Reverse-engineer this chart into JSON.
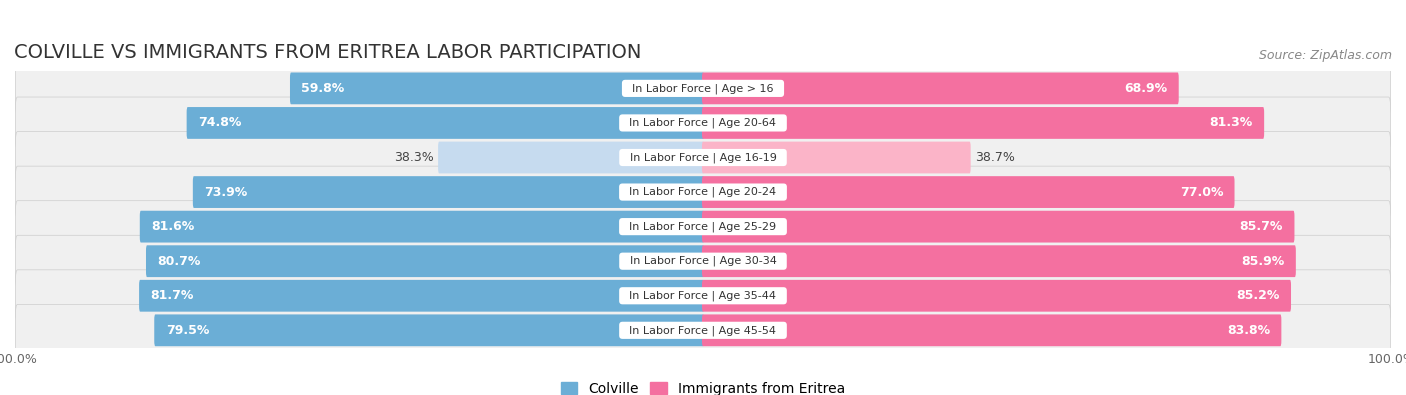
{
  "title": "COLVILLE VS IMMIGRANTS FROM ERITREA LABOR PARTICIPATION",
  "source": "Source: ZipAtlas.com",
  "categories": [
    "In Labor Force | Age > 16",
    "In Labor Force | Age 20-64",
    "In Labor Force | Age 16-19",
    "In Labor Force | Age 20-24",
    "In Labor Force | Age 25-29",
    "In Labor Force | Age 30-34",
    "In Labor Force | Age 35-44",
    "In Labor Force | Age 45-54"
  ],
  "colville_values": [
    59.8,
    74.8,
    38.3,
    73.9,
    81.6,
    80.7,
    81.7,
    79.5
  ],
  "eritrea_values": [
    68.9,
    81.3,
    38.7,
    77.0,
    85.7,
    85.9,
    85.2,
    83.8
  ],
  "colville_color": "#6baed6",
  "colville_color_light": "#c6dbef",
  "eritrea_color": "#f470a0",
  "eritrea_color_light": "#fbb4c8",
  "row_bg_color": "#f0f0f0",
  "row_bg_color_alt": "#e8e8e8",
  "max_value": 100.0,
  "bar_height": 0.62,
  "title_fontsize": 14,
  "source_fontsize": 9,
  "label_fontsize": 9,
  "category_fontsize": 8,
  "legend_fontsize": 10,
  "fig_width": 14.06,
  "fig_height": 3.95
}
